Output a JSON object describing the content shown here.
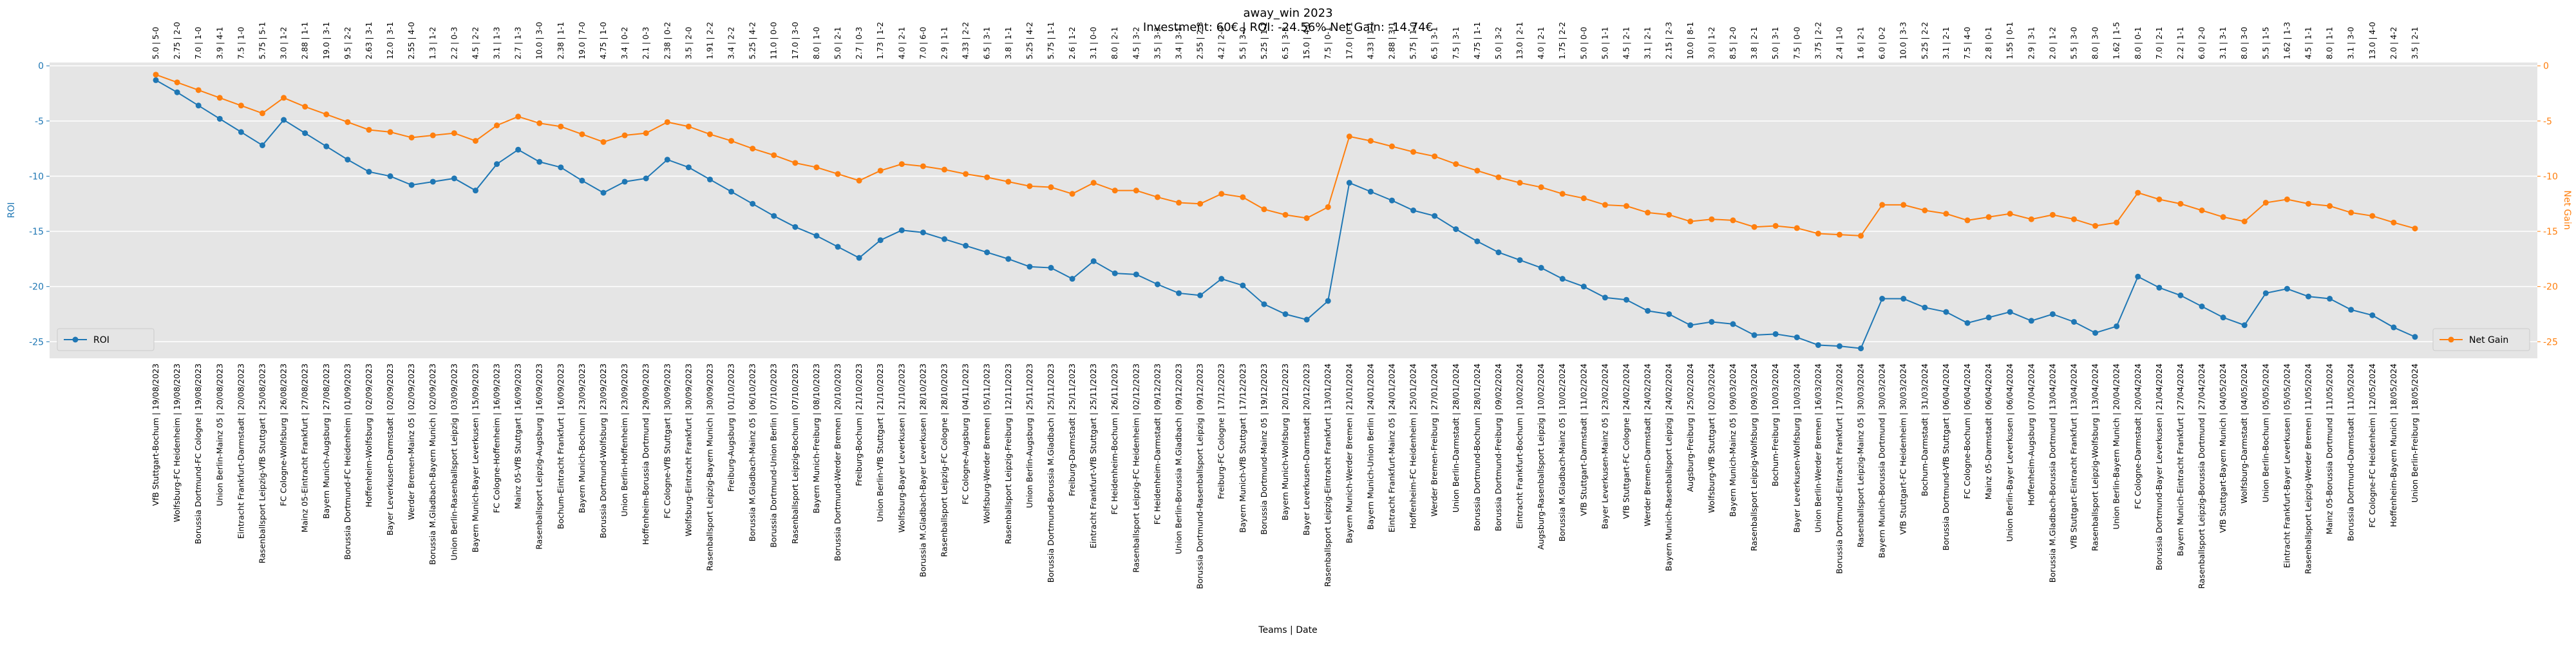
{
  "chart_data": {
    "type": "line",
    "title": "away_win 2023",
    "subtitle": "Investment: 60€ | ROI: -24.56% Net Gain: -14.74€",
    "xlabel": "Teams | Date",
    "ylabel": "ROI",
    "y2label": "Net Gain",
    "ylim": [
      -26.5,
      0.3
    ],
    "yticks": [
      0,
      -5,
      -10,
      -15,
      -20,
      -25
    ],
    "y2lim": [
      -26.5,
      0.3
    ],
    "y2ticks": [
      0,
      -5,
      -10,
      -15,
      -20,
      -25
    ],
    "grid": true,
    "categories": [
      "VfB Stuttgart-Bochum | 19/08/2023",
      "Wolfsburg-FC Heidenheim | 19/08/2023",
      "Borussia Dortmund-FC Cologne | 19/08/2023",
      "Union Berlin-Mainz 05 | 20/08/2023",
      "Eintracht Frankfurt-Darmstadt | 20/08/2023",
      "Rasenballsport Leipzig-VfB Stuttgart | 25/08/2023",
      "FC Cologne-Wolfsburg | 26/08/2023",
      "Mainz 05-Eintracht Frankfurt | 27/08/2023",
      "Bayern Munich-Augsburg | 27/08/2023",
      "Borussia Dortmund-FC Heidenheim | 01/09/2023",
      "Hoffenheim-Wolfsburg | 02/09/2023",
      "Bayer Leverkusen-Darmstadt | 02/09/2023",
      "Werder Bremen-Mainz 05 | 02/09/2023",
      "Borussia M.Gladbach-Bayern Munich | 02/09/2023",
      "Union Berlin-Rasenballsport Leipzig | 03/09/2023",
      "Bayern Munich-Bayer Leverkusen | 15/09/2023",
      "FC Cologne-Hoffenheim | 16/09/2023",
      "Mainz 05-VfB Stuttgart | 16/09/2023",
      "Rasenballsport Leipzig-Augsburg | 16/09/2023",
      "Bochum-Eintracht Frankfurt | 16/09/2023",
      "Bayern Munich-Bochum | 23/09/2023",
      "Borussia Dortmund-Wolfsburg | 23/09/2023",
      "Union Berlin-Hoffenheim | 23/09/2023",
      "Hoffenheim-Borussia Dortmund | 29/09/2023",
      "FC Cologne-VfB Stuttgart | 30/09/2023",
      "Wolfsburg-Eintracht Frankfurt | 30/09/2023",
      "Rasenballsport Leipzig-Bayern Munich | 30/09/2023",
      "Freiburg-Augsburg | 01/10/2023",
      "Borussia M.Gladbach-Mainz 05 | 06/10/2023",
      "Borussia Dortmund-Union Berlin | 07/10/2023",
      "Rasenballsport Leipzig-Bochum | 07/10/2023",
      "Bayern Munich-Freiburg | 08/10/2023",
      "Borussia Dortmund-Werder Bremen | 20/10/2023",
      "Freiburg-Bochum | 21/10/2023",
      "Union Berlin-VfB Stuttgart | 21/10/2023",
      "Wolfsburg-Bayer Leverkusen | 21/10/2023",
      "Borussia M.Gladbach-Bayer Leverkusen | 28/10/2023",
      "Rasenballsport Leipzig-FC Cologne | 28/10/2023",
      "FC Cologne-Augsburg | 04/11/2023",
      "Wolfsburg-Werder Bremen | 05/11/2023",
      "Rasenballsport Leipzig-Freiburg | 12/11/2023",
      "Union Berlin-Augsburg | 25/11/2023",
      "Borussia Dortmund-Borussia M.Gladbach | 25/11/2023",
      "Freiburg-Darmstadt | 25/11/2023",
      "Eintracht Frankfurt-VfB Stuttgart | 25/11/2023",
      "FC Heidenheim-Bochum | 26/11/2023",
      "Rasenballsport Leipzig-FC Heidenheim | 02/12/2023",
      "FC Heidenheim-Darmstadt | 09/12/2023",
      "Union Berlin-Borussia M.Gladbach | 09/12/2023",
      "Borussia Dortmund-Rasenballsport Leipzig | 09/12/2023",
      "Freiburg-FC Cologne | 17/12/2023",
      "Bayern Munich-VfB Stuttgart | 17/12/2023",
      "Borussia Dortmund-Mainz 05 | 19/12/2023",
      "Bayern Munich-Wolfsburg | 20/12/2023",
      "Bayer Leverkusen-Darmstadt | 20/12/2023",
      "Rasenballsport Leipzig-Eintracht Frankfurt | 13/01/2024",
      "Bayern Munich-Werder Bremen | 21/01/2024",
      "Bayern Munich-Union Berlin | 24/01/2024",
      "Eintracht Frankfurt-Mainz 05 | 24/01/2024",
      "Hoffenheim-FC Heidenheim | 25/01/2024",
      "Werder Bremen-Freiburg | 27/01/2024",
      "Union Berlin-Darmstadt | 28/01/2024",
      "Borussia Dortmund-Bochum | 28/01/2024",
      "Borussia Dortmund-Freiburg | 09/02/2024",
      "Eintracht Frankfurt-Bochum | 10/02/2024",
      "Augsburg-Rasenballsport Leipzig | 10/02/2024",
      "Borussia M.Gladbach-Mainz 05 | 10/02/2024",
      "VfB Stuttgart-Darmstadt | 11/02/2024",
      "Bayer Leverkusen-Mainz 05 | 23/02/2024",
      "VfB Stuttgart-FC Cologne | 24/02/2024",
      "Werder Bremen-Darmstadt | 24/02/2024",
      "Bayern Munich-Rasenballsport Leipzig | 24/02/2024",
      "Augsburg-Freiburg | 25/02/2024",
      "Wolfsburg-VfB Stuttgart | 02/03/2024",
      "Bayern Munich-Mainz 05 | 09/03/2024",
      "Rasenballsport Leipzig-Wolfsburg | 09/03/2024",
      "Bochum-Freiburg | 10/03/2024",
      "Bayer Leverkusen-Wolfsburg | 10/03/2024",
      "Union Berlin-Werder Bremen | 16/03/2024",
      "Borussia Dortmund-Eintracht Frankfurt | 17/03/2024",
      "Rasenballsport Leipzig-Mainz 05 | 30/03/2024",
      "Bayern Munich-Borussia Dortmund | 30/03/2024",
      "VfB Stuttgart-FC Heidenheim | 30/03/2024",
      "Bochum-Darmstadt | 31/03/2024",
      "Borussia Dortmund-VfB Stuttgart | 06/04/2024",
      "FC Cologne-Bochum | 06/04/2024",
      "Mainz 05-Darmstadt | 06/04/2024",
      "Union Berlin-Bayer Leverkusen | 06/04/2024",
      "Hoffenheim-Augsburg | 07/04/2024",
      "Borussia M.Gladbach-Borussia Dortmund | 13/04/2024",
      "VfB Stuttgart-Eintracht Frankfurt | 13/04/2024",
      "Rasenballsport Leipzig-Wolfsburg | 13/04/2024",
      "Union Berlin-Bayern Munich | 20/04/2024",
      "FC Cologne-Darmstadt | 20/04/2024",
      "Borussia Dortmund-Bayer Leverkusen | 21/04/2024",
      "Bayern Munich-Eintracht Frankfurt | 27/04/2024",
      "Rasenballsport Leipzig-Borussia Dortmund | 27/04/2024",
      "VfB Stuttgart-Bayern Munich | 04/05/2024",
      "Wolfsburg-Darmstadt | 04/05/2024",
      "Union Berlin-Bochum | 05/05/2024",
      "Eintracht Frankfurt-Bayer Leverkusen | 05/05/2024",
      "Rasenballsport Leipzig-Werder Bremen | 11/05/2024",
      "Mainz 05-Borussia Dortmund | 11/05/2024",
      "Borussia Dortmund-Darmstadt | 11/05/2024",
      "FC Cologne-FC Heidenheim | 12/05/2024",
      "Hoffenheim-Bayern Munich | 18/05/2024",
      "Union Berlin-Freiburg | 18/05/2024"
    ],
    "top_labels": [
      "5.0 | 5-0",
      "2.75 | 2-0",
      "7.0 | 1-0",
      "3.9 | 4-1",
      "7.5 | 1-0",
      "5.75 | 5-1",
      "3.0 | 1-2",
      "2.88 | 1-1",
      "19.0 | 3-1",
      "9.5 | 2-2",
      "2.63 | 3-1",
      "12.0 | 3-1",
      "2.55 | 4-0",
      "1.3 | 1-2",
      "2.2 | 0-3",
      "4.5 | 2-2",
      "3.1 | 1-3",
      "2.7 | 1-3",
      "10.0 | 3-0",
      "2.38 | 1-1",
      "19.0 | 7-0",
      "4.75 | 1-0",
      "3.4 | 0-2",
      "2.1 | 0-3",
      "2.38 | 0-2",
      "3.5 | 2-0",
      "1.91 | 2-2",
      "3.4 | 2-2",
      "5.25 | 4-2",
      "11.0 | 0-0",
      "17.0 | 3-0",
      "8.0 | 1-0",
      "5.0 | 2-1",
      "2.7 | 0-3",
      "1.73 | 1-2",
      "4.0 | 2-1",
      "7.0 | 6-0",
      "2.9 | 1-1",
      "4.33 | 2-2",
      "6.5 | 3-1",
      "3.8 | 1-1",
      "5.25 | 4-2",
      "5.75 | 1-1",
      "2.6 | 1-2",
      "3.1 | 0-0",
      "8.0 | 2-1",
      "4.5 | 3-2",
      "3.5 | 3-2",
      "3.4 | 3-1",
      "2.55 | 2-3",
      "4.2 | 2-0",
      "5.5 | 3-0",
      "5.25 | 1-1",
      "6.5 | 3-3",
      "15.0 | 4-0",
      "7.5 | 0-1",
      "17.0 | 0-1",
      "4.33 | 1-1",
      "2.88 | 3-1",
      "5.75 | 1-0",
      "6.5 | 3-1",
      "7.5 | 3-1",
      "4.75 | 1-1",
      "5.0 | 3-2",
      "13.0 | 2-1",
      "4.0 | 2-1",
      "1.75 | 2-2",
      "5.0 | 0-0",
      "5.0 | 1-1",
      "4.5 | 2-1",
      "3.1 | 2-1",
      "2.15 | 2-3",
      "10.0 | 8-1",
      "3.0 | 1-2",
      "8.5 | 2-0",
      "3.8 | 2-1",
      "5.0 | 3-1",
      "7.5 | 0-0",
      "3.75 | 2-2",
      "2.4 | 1-0",
      "1.6 | 2-1",
      "6.0 | 0-2",
      "10.0 | 3-3",
      "5.25 | 2-2",
      "3.1 | 2-1",
      "7.5 | 4-0",
      "2.8 | 0-1",
      "1.55 | 0-1",
      "2.9 | 3-1",
      "2.0 | 1-2",
      "5.5 | 3-0",
      "8.0 | 3-0",
      "1.62 | 1-5",
      "8.0 | 0-1",
      "7.0 | 2-1",
      "2.2 | 1-1",
      "6.0 | 2-0",
      "3.1 | 3-1",
      "8.0 | 3-0",
      "5.5 | 1-5",
      "1.62 | 1-3",
      "4.5 | 1-1",
      "8.0 | 1-1",
      "3.1 | 3-0",
      "13.0 | 4-0",
      "2.0 | 4-2",
      "3.5 | 2-1"
    ],
    "series": [
      {
        "name": "ROI",
        "color": "#1f77b4",
        "legend": "lower left",
        "values": [
          -1.3,
          -2.4,
          -3.6,
          -4.8,
          -6.0,
          -7.2,
          -4.9,
          -6.1,
          -7.3,
          -8.5,
          -9.6,
          -10.0,
          -10.8,
          -10.5,
          -10.2,
          -11.3,
          -8.9,
          -7.6,
          -8.7,
          -9.2,
          -10.4,
          -11.5,
          -10.5,
          -10.2,
          -8.5,
          -9.2,
          -10.3,
          -11.4,
          -12.5,
          -13.6,
          -14.6,
          -15.4,
          -16.4,
          -17.4,
          -15.8,
          -14.9,
          -15.1,
          -15.7,
          -16.3,
          -16.9,
          -17.5,
          -18.2,
          -18.3,
          -19.3,
          -17.7,
          -18.8,
          -18.9,
          -19.8,
          -20.6,
          -20.8,
          -19.3,
          -19.9,
          -21.6,
          -22.5,
          -23.0,
          -21.3,
          -10.6,
          -11.4,
          -12.2,
          -13.1,
          -13.6,
          -14.8,
          -15.9,
          -16.9,
          -17.6,
          -18.3,
          -19.3,
          -20.0,
          -21.0,
          -21.2,
          -22.2,
          -22.5,
          -23.5,
          -23.2,
          -23.4,
          -24.4,
          -24.3,
          -24.6,
          -25.3,
          -25.4,
          -25.6,
          -21.1,
          -21.1,
          -21.9,
          -22.3,
          -23.3,
          -22.8,
          -22.3,
          -23.1,
          -22.5,
          -23.2,
          -24.2,
          -23.6,
          -19.1,
          -20.1,
          -20.8,
          -21.8,
          -22.8,
          -23.5,
          -20.6,
          -20.2,
          -20.9,
          -21.1,
          -22.1,
          -22.6,
          -23.7,
          -24.56
        ]
      },
      {
        "name": "Net Gain",
        "color": "#ff7f0e",
        "axis": "y2",
        "legend": "lower right",
        "values": [
          -0.8,
          -1.5,
          -2.2,
          -2.9,
          -3.6,
          -4.3,
          -2.9,
          -3.7,
          -4.4,
          -5.1,
          -5.8,
          -6.0,
          -6.5,
          -6.3,
          -6.1,
          -6.8,
          -5.4,
          -4.6,
          -5.2,
          -5.5,
          -6.2,
          -6.9,
          -6.3,
          -6.1,
          -5.1,
          -5.5,
          -6.2,
          -6.8,
          -7.5,
          -8.1,
          -8.8,
          -9.2,
          -9.8,
          -10.4,
          -9.5,
          -8.9,
          -9.1,
          -9.4,
          -9.8,
          -10.1,
          -10.5,
          -10.9,
          -11.0,
          -11.6,
          -10.6,
          -11.3,
          -11.3,
          -11.9,
          -12.4,
          -12.5,
          -11.6,
          -11.9,
          -13.0,
          -13.5,
          -13.8,
          -12.8,
          -6.4,
          -6.8,
          -7.3,
          -7.8,
          -8.2,
          -8.9,
          -9.5,
          -10.1,
          -10.6,
          -11.0,
          -11.6,
          -12.0,
          -12.6,
          -12.7,
          -13.3,
          -13.5,
          -14.1,
          -13.9,
          -14.0,
          -14.6,
          -14.5,
          -14.7,
          -15.2,
          -15.3,
          -15.4,
          -12.6,
          -12.6,
          -13.1,
          -13.4,
          -14.0,
          -13.7,
          -13.4,
          -13.9,
          -13.5,
          -13.9,
          -14.5,
          -14.2,
          -11.5,
          -12.1,
          -12.5,
          -13.1,
          -13.7,
          -14.1,
          -12.4,
          -12.1,
          -12.5,
          -12.7,
          -13.3,
          -13.6,
          -14.2,
          -14.74
        ]
      }
    ]
  }
}
